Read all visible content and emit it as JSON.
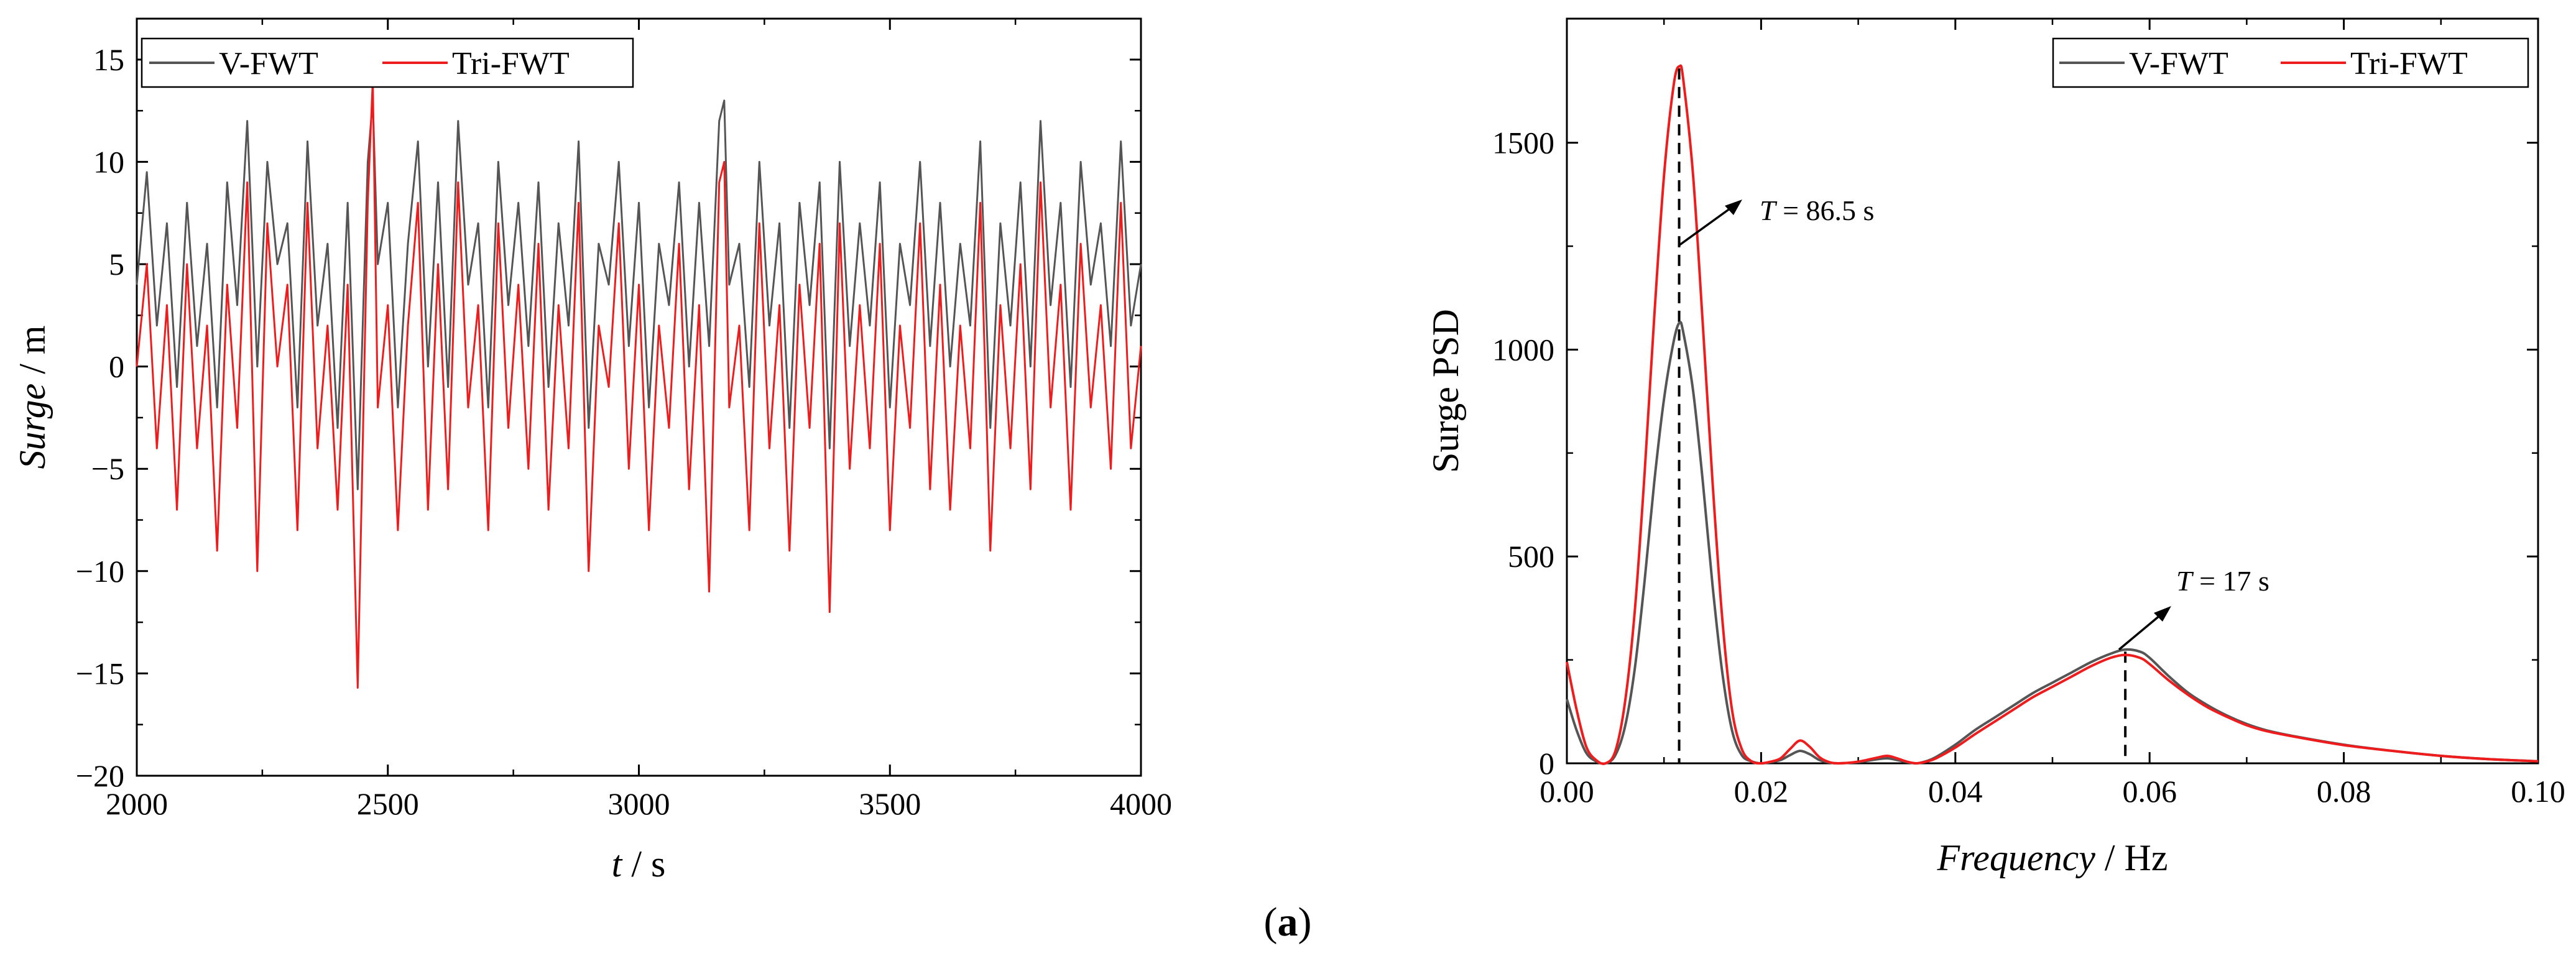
{
  "colors": {
    "v_fwt": "#555555",
    "tri_fwt": "#ee1c1c",
    "axis": "#000000"
  },
  "caption": {
    "open": "(",
    "letter": "a",
    "close": ")"
  },
  "chart_data": [
    {
      "type": "line",
      "title": "",
      "xlabel_italic": "t",
      "xlabel_unit": " / s",
      "ylabel_italic": "Surge",
      "ylabel_unit": " / m",
      "xlim": [
        2000,
        4000
      ],
      "ylim": [
        -20,
        17
      ],
      "xticks": [
        2000,
        2500,
        3000,
        3500,
        4000
      ],
      "xtick_labels": [
        "2000",
        "2500",
        "3000",
        "3500",
        "4000"
      ],
      "yticks": [
        -20,
        -15,
        -10,
        -5,
        0,
        5,
        10,
        15
      ],
      "ytick_labels": [
        "−20",
        "−15",
        "−10",
        "−5",
        "0",
        "5",
        "10",
        "15"
      ],
      "legend": {
        "position": "top-left",
        "entries": [
          "V-FWT",
          "Tri-FWT"
        ]
      },
      "series": [
        {
          "name": "V-FWT",
          "x": [
            2000,
            2020,
            2040,
            2060,
            2080,
            2100,
            2120,
            2140,
            2160,
            2180,
            2200,
            2220,
            2240,
            2260,
            2280,
            2300,
            2320,
            2340,
            2360,
            2380,
            2400,
            2420,
            2440,
            2460,
            2470,
            2480,
            2500,
            2520,
            2540,
            2560,
            2580,
            2600,
            2620,
            2640,
            2660,
            2680,
            2700,
            2720,
            2740,
            2760,
            2780,
            2800,
            2820,
            2840,
            2860,
            2880,
            2900,
            2920,
            2940,
            2960,
            2980,
            3000,
            3020,
            3040,
            3060,
            3080,
            3100,
            3120,
            3140,
            3160,
            3170,
            3180,
            3200,
            3220,
            3240,
            3260,
            3280,
            3300,
            3320,
            3340,
            3360,
            3380,
            3400,
            3420,
            3440,
            3460,
            3480,
            3500,
            3520,
            3540,
            3560,
            3580,
            3600,
            3620,
            3640,
            3660,
            3680,
            3700,
            3720,
            3740,
            3760,
            3780,
            3800,
            3820,
            3840,
            3860,
            3880,
            3900,
            3920,
            3940,
            3960,
            3980,
            4000
          ],
          "values": [
            4,
            9.5,
            2,
            7,
            -1,
            8,
            1,
            6,
            -2,
            9,
            3,
            12,
            0,
            10,
            5,
            7,
            -2,
            11,
            2,
            6,
            -3,
            8,
            -6,
            10,
            13,
            5,
            8,
            -2,
            6,
            11,
            0,
            9,
            -1,
            12,
            4,
            7,
            -2,
            10,
            3,
            8,
            1,
            9,
            -1,
            7,
            2,
            11,
            -3,
            6,
            4,
            10,
            1,
            8,
            -2,
            6,
            3,
            9,
            0,
            8,
            1,
            12,
            13,
            4,
            6,
            -1,
            10,
            2,
            7,
            -3,
            8,
            3,
            9,
            -4,
            10,
            1,
            7,
            2,
            9,
            -2,
            6,
            3,
            10,
            1,
            8,
            0,
            6,
            2,
            11,
            -3,
            7,
            2,
            9,
            0,
            12,
            3,
            8,
            -1,
            10,
            4,
            7,
            1,
            11,
            2,
            5
          ]
        },
        {
          "name": "Tri-FWT",
          "x": [
            2000,
            2020,
            2040,
            2060,
            2080,
            2100,
            2120,
            2140,
            2160,
            2180,
            2200,
            2220,
            2240,
            2260,
            2280,
            2300,
            2320,
            2340,
            2360,
            2380,
            2400,
            2420,
            2440,
            2460,
            2470,
            2480,
            2500,
            2520,
            2540,
            2560,
            2580,
            2600,
            2620,
            2640,
            2660,
            2680,
            2700,
            2720,
            2740,
            2760,
            2780,
            2800,
            2820,
            2840,
            2860,
            2880,
            2900,
            2920,
            2940,
            2960,
            2980,
            3000,
            3020,
            3040,
            3060,
            3080,
            3100,
            3120,
            3140,
            3160,
            3170,
            3180,
            3200,
            3220,
            3240,
            3260,
            3280,
            3300,
            3320,
            3340,
            3360,
            3380,
            3400,
            3420,
            3440,
            3460,
            3480,
            3500,
            3520,
            3540,
            3560,
            3580,
            3600,
            3620,
            3640,
            3660,
            3680,
            3700,
            3720,
            3740,
            3760,
            3780,
            3800,
            3820,
            3840,
            3860,
            3880,
            3900,
            3920,
            3940,
            3960,
            3980,
            4000
          ],
          "values": [
            0,
            5,
            -4,
            3,
            -7,
            5,
            -4,
            2,
            -9,
            4,
            -3,
            9,
            -10,
            7,
            0,
            4,
            -8,
            8,
            -4,
            2,
            -7,
            4,
            -15.7,
            8,
            14,
            -2,
            3,
            -8,
            2,
            8,
            -7,
            5,
            -6,
            9,
            -2,
            3,
            -8,
            7,
            -3,
            4,
            -5,
            6,
            -7,
            3,
            -4,
            8,
            -10,
            2,
            -1,
            7,
            -5,
            4,
            -8,
            2,
            -3,
            6,
            -6,
            3,
            -11,
            9,
            10,
            -2,
            2,
            -8,
            7,
            -4,
            3,
            -9,
            4,
            -3,
            6,
            -12,
            7,
            -5,
            3,
            -4,
            6,
            -8,
            2,
            -3,
            7,
            -6,
            4,
            -7,
            2,
            -4,
            8,
            -9,
            3,
            -4,
            5,
            -6,
            9,
            -2,
            4,
            -7,
            6,
            -2,
            3,
            -5,
            8,
            -4,
            1
          ]
        }
      ]
    },
    {
      "type": "line",
      "title": "",
      "xlabel_italic": "Frequency",
      "xlabel_unit": " / Hz",
      "ylabel": "Surge PSD",
      "xlim": [
        0,
        0.1
      ],
      "ylim": [
        0,
        1800
      ],
      "xticks": [
        0,
        0.02,
        0.04,
        0.06,
        0.08,
        0.1
      ],
      "xtick_labels": [
        "0.00",
        "0.02",
        "0.04",
        "0.06",
        "0.08",
        "0.10"
      ],
      "yticks": [
        0,
        500,
        1000,
        1500
      ],
      "ytick_labels": [
        "0",
        "500",
        "1000",
        "1500"
      ],
      "legend": {
        "position": "top-right",
        "entries": [
          "V-FWT",
          "Tri-FWT"
        ]
      },
      "annotations": [
        {
          "italic": "T",
          "text": " = 86.5 s",
          "x": 0.01156,
          "y": 1680
        },
        {
          "italic": "T",
          "text": " = 17 s",
          "x": 0.0575,
          "y": 270
        }
      ],
      "series": [
        {
          "name": "V-FWT",
          "x": [
            0,
            0.001,
            0.002,
            0.003,
            0.004,
            0.005,
            0.006,
            0.007,
            0.008,
            0.009,
            0.01,
            0.011,
            0.0116,
            0.012,
            0.013,
            0.014,
            0.015,
            0.016,
            0.017,
            0.018,
            0.019,
            0.02,
            0.021,
            0.022,
            0.023,
            0.024,
            0.025,
            0.026,
            0.027,
            0.028,
            0.03,
            0.032,
            0.033,
            0.034,
            0.035,
            0.036,
            0.037,
            0.038,
            0.04,
            0.042,
            0.044,
            0.046,
            0.048,
            0.05,
            0.052,
            0.054,
            0.056,
            0.0575,
            0.059,
            0.06,
            0.062,
            0.064,
            0.066,
            0.068,
            0.07,
            0.072,
            0.075,
            0.08,
            0.085,
            0.09,
            0.095,
            0.1
          ],
          "values": [
            155,
            80,
            25,
            5,
            0,
            20,
            90,
            230,
            440,
            680,
            880,
            1020,
            1065,
            1040,
            900,
            680,
            430,
            220,
            80,
            20,
            5,
            0,
            3,
            8,
            20,
            30,
            22,
            8,
            2,
            0,
            3,
            10,
            12,
            8,
            3,
            0,
            5,
            15,
            45,
            80,
            110,
            140,
            170,
            195,
            220,
            245,
            265,
            275,
            270,
            255,
            210,
            170,
            140,
            115,
            95,
            80,
            65,
            45,
            30,
            18,
            10,
            5
          ]
        },
        {
          "name": "Tri-FWT",
          "x": [
            0,
            0.001,
            0.002,
            0.003,
            0.004,
            0.005,
            0.006,
            0.007,
            0.008,
            0.009,
            0.01,
            0.011,
            0.0116,
            0.012,
            0.013,
            0.014,
            0.015,
            0.016,
            0.017,
            0.018,
            0.019,
            0.02,
            0.021,
            0.022,
            0.023,
            0.024,
            0.025,
            0.026,
            0.027,
            0.028,
            0.03,
            0.032,
            0.033,
            0.034,
            0.035,
            0.036,
            0.037,
            0.038,
            0.04,
            0.042,
            0.044,
            0.046,
            0.048,
            0.05,
            0.052,
            0.054,
            0.056,
            0.0575,
            0.059,
            0.06,
            0.062,
            0.064,
            0.066,
            0.068,
            0.07,
            0.072,
            0.075,
            0.08,
            0.085,
            0.09,
            0.095,
            0.1
          ],
          "values": [
            245,
            130,
            40,
            8,
            0,
            30,
            150,
            370,
            700,
            1080,
            1420,
            1640,
            1685,
            1650,
            1420,
            1060,
            680,
            350,
            130,
            35,
            5,
            0,
            4,
            12,
            35,
            55,
            40,
            15,
            3,
            0,
            4,
            14,
            18,
            12,
            4,
            0,
            4,
            12,
            38,
            70,
            100,
            130,
            160,
            185,
            210,
            235,
            255,
            262,
            255,
            240,
            200,
            165,
            135,
            112,
            92,
            78,
            64,
            44,
            30,
            18,
            10,
            5
          ]
        }
      ]
    }
  ]
}
